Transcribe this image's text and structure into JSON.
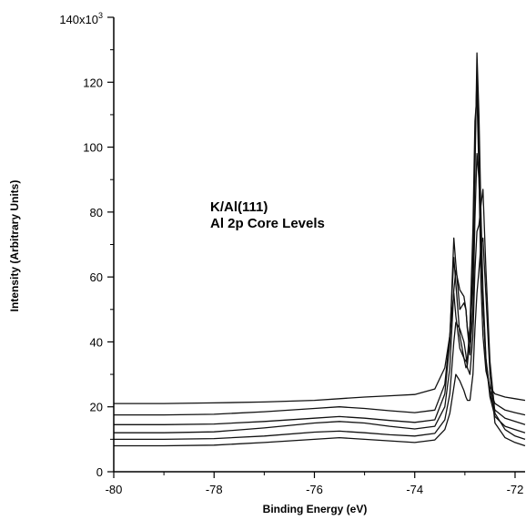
{
  "chart_data": {
    "type": "line",
    "title": "",
    "xlabel": "Binding Energy (eV)",
    "ylabel": "Intensity (Arbitrary Units)",
    "xlim": [
      -80,
      -71.8
    ],
    "ylim": [
      0,
      140
    ],
    "x_ticks": [
      -80,
      -78,
      -76,
      -74,
      -72
    ],
    "x_tick_labels": [
      "-80",
      "-78",
      "-76",
      "-74",
      "-72"
    ],
    "y_ticks": [
      0,
      20,
      40,
      60,
      80,
      100,
      120
    ],
    "y_tick_labels": [
      "0",
      "20",
      "40",
      "60",
      "80",
      "100",
      "120"
    ],
    "y_top_label": "140x10",
    "y_top_exponent": "3",
    "annotations": [
      "K/Al(111)",
      "Al 2p Core Levels"
    ],
    "grid": false,
    "series": [
      {
        "x": [
          -80,
          -79,
          -78,
          -77,
          -76,
          -75.5,
          -75,
          -74.5,
          -74,
          -73.6,
          -73.4,
          -73.3,
          -73.22,
          -73.18,
          -73.1,
          -73.02,
          -72.98,
          -72.95,
          -72.9,
          -72.84,
          -72.8,
          -72.76,
          -72.72,
          -72.68,
          -72.64,
          -72.58,
          -72.5,
          -72.4,
          -72.2,
          -72,
          -71.8
        ],
        "y": [
          21,
          21,
          21.2,
          21.5,
          22,
          22.5,
          23,
          23.4,
          23.8,
          25.5,
          32,
          42,
          55,
          48,
          38,
          35,
          34,
          35,
          45,
          75,
          108,
          116,
          92,
          58,
          42,
          31,
          26,
          24,
          23,
          22.5,
          22
        ]
      },
      {
        "x": [
          -80,
          -79,
          -78,
          -77,
          -76,
          -75.5,
          -75,
          -74.5,
          -74,
          -73.6,
          -73.4,
          -73.3,
          -73.22,
          -73.18,
          -73.1,
          -73.02,
          -72.98,
          -72.95,
          -72.9,
          -72.84,
          -72.8,
          -72.76,
          -72.72,
          -72.68,
          -72.64,
          -72.58,
          -72.5,
          -72.4,
          -72.2,
          -72,
          -71.8
        ],
        "y": [
          17.5,
          17.5,
          17.7,
          18.5,
          19.5,
          20,
          19.5,
          18.8,
          18.2,
          19,
          27,
          42,
          66,
          58,
          42,
          35,
          32,
          33,
          42,
          70,
          100,
          122,
          100,
          72,
          52,
          34,
          25,
          21,
          19,
          18.2,
          17.5
        ]
      },
      {
        "x": [
          -80,
          -79,
          -78,
          -77,
          -76,
          -75.5,
          -75,
          -74.5,
          -74,
          -73.6,
          -73.4,
          -73.3,
          -73.22,
          -73.18,
          -73.1,
          -73.02,
          -72.98,
          -72.95,
          -72.9,
          -72.84,
          -72.8,
          -72.76,
          -72.72,
          -72.68,
          -72.64,
          -72.58,
          -72.5,
          -72.4,
          -72.2,
          -72,
          -71.8
        ],
        "y": [
          14.5,
          14.5,
          14.7,
          15.5,
          16.5,
          17,
          16.5,
          15.8,
          15.2,
          16,
          24,
          40,
          72,
          64,
          50,
          52,
          50,
          44,
          40,
          60,
          92,
          129,
          110,
          80,
          56,
          35,
          24,
          19,
          16.5,
          15.5,
          14.5
        ]
      },
      {
        "x": [
          -80,
          -79,
          -78,
          -77,
          -76,
          -75.5,
          -75,
          -74.5,
          -74,
          -73.6,
          -73.4,
          -73.3,
          -73.22,
          -73.18,
          -73.1,
          -73.02,
          -72.98,
          -72.95,
          -72.9,
          -72.84,
          -72.8,
          -72.76,
          -72.72,
          -72.68,
          -72.64,
          -72.58,
          -72.5,
          -72.4,
          -72.2,
          -72,
          -71.8
        ],
        "y": [
          12,
          12,
          12.3,
          13.5,
          15,
          15.5,
          15,
          14,
          13.2,
          14,
          20,
          32,
          56,
          62,
          56,
          54,
          50,
          44,
          36,
          50,
          78,
          98,
          90,
          70,
          52,
          34,
          23,
          17,
          14,
          13,
          12
        ]
      },
      {
        "x": [
          -80,
          -79,
          -78,
          -77,
          -76,
          -75.5,
          -75,
          -74.5,
          -74,
          -73.6,
          -73.4,
          -73.3,
          -73.22,
          -73.18,
          -73.1,
          -73.02,
          -72.98,
          -72.95,
          -72.9,
          -72.84,
          -72.8,
          -72.76,
          -72.72,
          -72.68,
          -72.64,
          -72.58,
          -72.5,
          -72.4,
          -72.2,
          -72,
          -71.8
        ],
        "y": [
          10,
          10,
          10.2,
          11,
          12.2,
          12.5,
          12,
          11.4,
          11,
          11.8,
          16,
          24,
          40,
          46,
          44,
          40,
          36,
          32,
          30,
          42,
          62,
          74,
          76,
          82,
          87,
          62,
          34,
          18,
          13,
          11,
          10
        ]
      },
      {
        "x": [
          -80,
          -79,
          -78,
          -77,
          -76,
          -75.5,
          -75,
          -74.5,
          -74,
          -73.6,
          -73.4,
          -73.3,
          -73.22,
          -73.18,
          -73.1,
          -73.02,
          -72.98,
          -72.95,
          -72.9,
          -72.84,
          -72.8,
          -72.76,
          -72.72,
          -72.68,
          -72.64,
          -72.58,
          -72.5,
          -72.4,
          -72.2,
          -72,
          -71.8
        ],
        "y": [
          8,
          8,
          8.2,
          9,
          10,
          10.5,
          10,
          9.5,
          9,
          9.8,
          13,
          18,
          26,
          30,
          28,
          25,
          23,
          22,
          22,
          30,
          44,
          55,
          62,
          70,
          72,
          54,
          30,
          15,
          10.5,
          9,
          8
        ]
      }
    ]
  }
}
